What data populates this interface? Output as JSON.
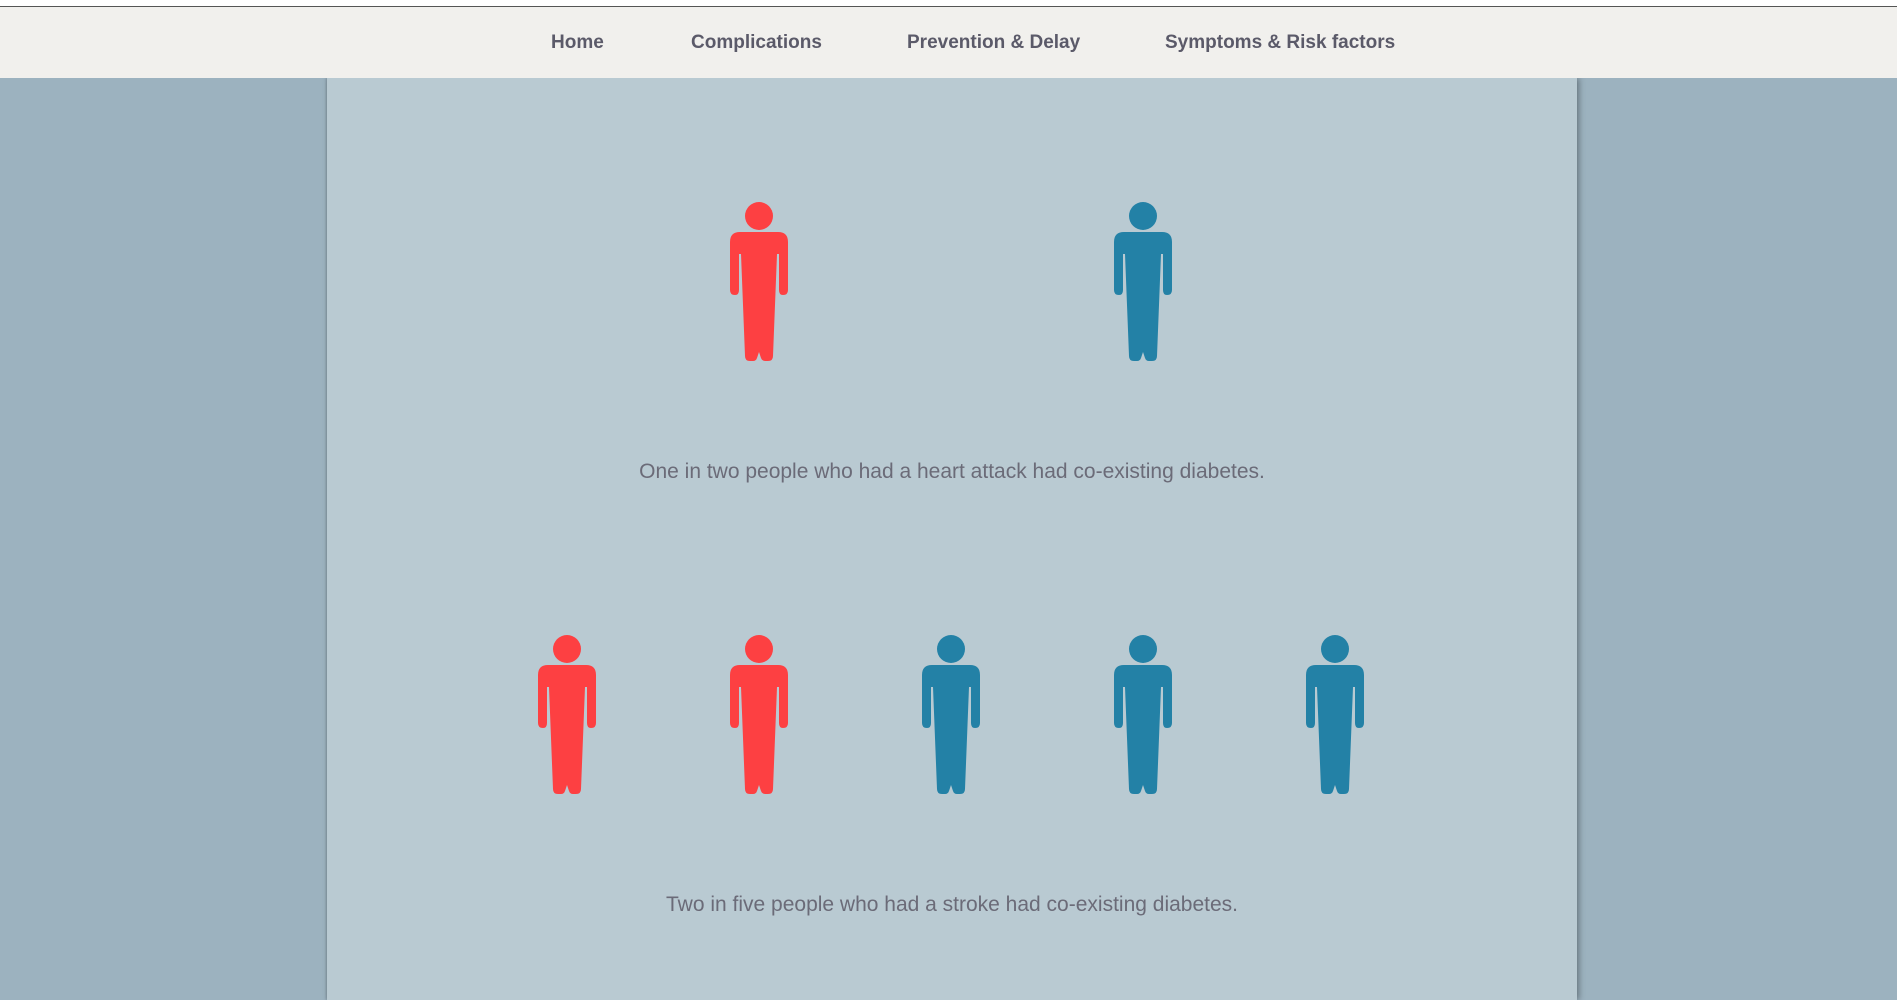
{
  "nav": {
    "items": [
      {
        "label": "Home"
      },
      {
        "label": "Complications"
      },
      {
        "label": "Prevention & Delay"
      },
      {
        "label": "Symptoms & Risk factors"
      }
    ]
  },
  "colors": {
    "page_background": "#9cb2bf",
    "panel_background": "#b9cad2",
    "navbar_background": "#f1f0ed",
    "highlight_person": "#fd4042",
    "other_person": "#2381a6",
    "caption_text": "#6b6b78"
  },
  "stats": [
    {
      "icon": "person-icon",
      "highlighted": 1,
      "total": 2,
      "caption": "One in two people who had a heart attack had co-existing diabetes."
    },
    {
      "icon": "person-icon",
      "highlighted": 2,
      "total": 5,
      "caption": "Two in five people who had a stroke had co-existing diabetes."
    }
  ]
}
